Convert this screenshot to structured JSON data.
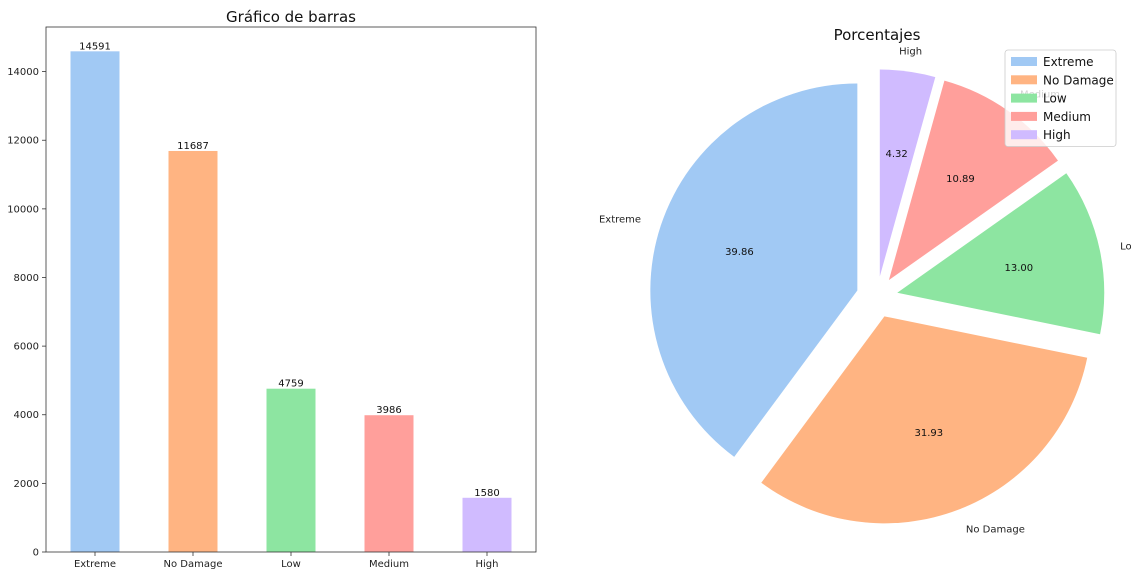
{
  "chart_data": [
    {
      "type": "bar",
      "title": "Gráfico de barras",
      "categories": [
        "Extreme",
        "No Damage",
        "Low",
        "Medium",
        "High"
      ],
      "values": [
        14591,
        11687,
        4759,
        3986,
        1580
      ],
      "data_labels": [
        "14591",
        "11687",
        "4759",
        "3986",
        "1580"
      ],
      "colors": [
        "#a1c9f4",
        "#ffb482",
        "#8de5a1",
        "#ff9f9b",
        "#d0bbff"
      ],
      "ylim": [
        0,
        15300
      ],
      "yticks": [
        0,
        2000,
        4000,
        6000,
        8000,
        10000,
        12000,
        14000
      ],
      "ytick_labels": [
        "0",
        "2000",
        "4000",
        "6000",
        "8000",
        "10000",
        "12000",
        "14000"
      ],
      "grid": false
    },
    {
      "type": "pie",
      "title": "Porcentajes",
      "labels": [
        "Extreme",
        "No Damage",
        "Low",
        "Medium",
        "High"
      ],
      "values": [
        39.86,
        31.93,
        13.0,
        10.89,
        4.32
      ],
      "pct_labels": [
        "39.86",
        "31.93",
        "13.00",
        "10.89",
        "4.32"
      ],
      "colors": [
        "#a1c9f4",
        "#ffb482",
        "#8de5a1",
        "#ff9f9b",
        "#d0bbff"
      ],
      "exploded": true,
      "start_angle_deg": 90,
      "direction": "counterclockwise",
      "legend": {
        "placement": "top-right",
        "entries": [
          "Extreme",
          "No Damage",
          "Low",
          "Medium",
          "High"
        ]
      }
    }
  ]
}
